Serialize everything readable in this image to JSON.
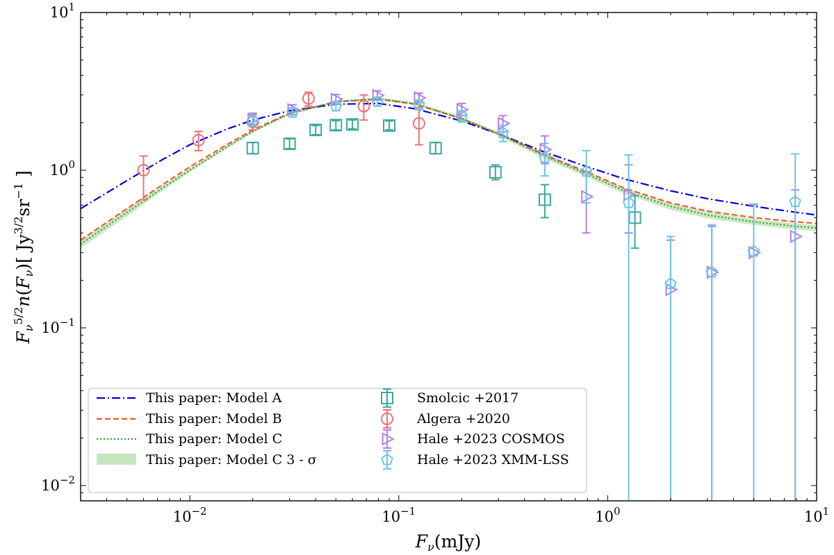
{
  "chart_data": {
    "type": "scatter",
    "title": "",
    "xlabel": "F_ν(mJy)",
    "ylabel": "F_ν^{5/2} n(F_ν) [ Jy^{3/2} sr^{-1} ]",
    "xscale": "log",
    "yscale": "log",
    "xlim": [
      0.003,
      10
    ],
    "ylim": [
      0.008,
      10
    ],
    "grid": false,
    "legend_position": "lower-left",
    "x_ticks": [
      {
        "value": 0.01,
        "base": "10",
        "exp": "−2"
      },
      {
        "value": 0.1,
        "base": "10",
        "exp": "−1"
      },
      {
        "value": 1,
        "base": "10",
        "exp": "0"
      },
      {
        "value": 10,
        "base": "10",
        "exp": "1"
      }
    ],
    "y_ticks": [
      {
        "value": 0.01,
        "base": "10",
        "exp": "−2"
      },
      {
        "value": 0.1,
        "base": "10",
        "exp": "−1"
      },
      {
        "value": 1,
        "base": "10",
        "exp": "0"
      },
      {
        "value": 10,
        "base": "10",
        "exp": "1"
      }
    ],
    "models": [
      {
        "name": "This paper: Model A",
        "color": "#0000dd",
        "dash": "dashdot",
        "x": [
          0.003,
          0.005,
          0.0075,
          0.01,
          0.015,
          0.02,
          0.03,
          0.05,
          0.08,
          0.12,
          0.2,
          0.3,
          0.5,
          0.8,
          1.2,
          2,
          3,
          5,
          8,
          10
        ],
        "y": [
          0.57,
          0.86,
          1.18,
          1.45,
          1.82,
          2.08,
          2.38,
          2.62,
          2.65,
          2.45,
          2.05,
          1.7,
          1.3,
          1.05,
          0.88,
          0.74,
          0.66,
          0.59,
          0.54,
          0.52
        ]
      },
      {
        "name": "This paper: Model B",
        "color": "#f05a28",
        "dash": "dashed",
        "x": [
          0.003,
          0.005,
          0.0075,
          0.01,
          0.015,
          0.02,
          0.03,
          0.05,
          0.08,
          0.12,
          0.2,
          0.3,
          0.5,
          0.8,
          1.2,
          2,
          3,
          5,
          8,
          10
        ],
        "y": [
          0.36,
          0.57,
          0.82,
          1.05,
          1.45,
          1.8,
          2.3,
          2.72,
          2.82,
          2.62,
          2.12,
          1.7,
          1.25,
          0.97,
          0.77,
          0.62,
          0.55,
          0.5,
          0.47,
          0.46
        ]
      },
      {
        "name": "This paper: Model C",
        "color": "#2ca02c",
        "dash": "dotted",
        "x": [
          0.003,
          0.005,
          0.0075,
          0.01,
          0.015,
          0.02,
          0.03,
          0.05,
          0.08,
          0.12,
          0.2,
          0.3,
          0.5,
          0.8,
          1.2,
          2,
          3,
          5,
          8,
          10
        ],
        "y": [
          0.34,
          0.54,
          0.78,
          1.0,
          1.4,
          1.76,
          2.28,
          2.72,
          2.84,
          2.64,
          2.13,
          1.7,
          1.23,
          0.94,
          0.74,
          0.59,
          0.52,
          0.47,
          0.44,
          0.43
        ]
      }
    ],
    "band": {
      "name": "This paper: Model C 3 - σ",
      "color": "#c7e6bf",
      "x": [
        0.003,
        0.005,
        0.0075,
        0.01,
        0.015,
        0.02,
        0.03,
        0.05,
        0.08,
        0.12,
        0.2,
        0.3,
        0.5,
        0.8,
        1.2,
        2,
        3,
        5,
        8,
        10
      ],
      "low": [
        0.32,
        0.51,
        0.75,
        0.97,
        1.37,
        1.73,
        2.25,
        2.68,
        2.79,
        2.59,
        2.08,
        1.65,
        1.18,
        0.9,
        0.71,
        0.56,
        0.495,
        0.45,
        0.42,
        0.41
      ],
      "high": [
        0.36,
        0.57,
        0.81,
        1.03,
        1.43,
        1.79,
        2.31,
        2.76,
        2.89,
        2.69,
        2.18,
        1.75,
        1.28,
        0.98,
        0.77,
        0.62,
        0.545,
        0.49,
        0.46,
        0.45
      ]
    },
    "datasets": [
      {
        "name": "Smolcic +2017",
        "color": "#3ba99c",
        "marker": "square",
        "points": [
          {
            "x": 0.02,
            "y": 1.38,
            "lo": 1.27,
            "hi": 1.5
          },
          {
            "x": 0.03,
            "y": 1.47,
            "lo": 1.37,
            "hi": 1.58
          },
          {
            "x": 0.04,
            "y": 1.8,
            "lo": 1.68,
            "hi": 1.92
          },
          {
            "x": 0.05,
            "y": 1.93,
            "lo": 1.8,
            "hi": 2.06
          },
          {
            "x": 0.06,
            "y": 1.95,
            "lo": 1.83,
            "hi": 2.08
          },
          {
            "x": 0.09,
            "y": 1.92,
            "lo": 1.8,
            "hi": 2.05
          },
          {
            "x": 0.15,
            "y": 1.38,
            "lo": 1.27,
            "hi": 1.5
          },
          {
            "x": 0.29,
            "y": 0.97,
            "lo": 0.87,
            "hi": 1.08
          },
          {
            "x": 0.5,
            "y": 0.65,
            "lo": 0.5,
            "hi": 0.81
          },
          {
            "x": 1.35,
            "y": 0.5,
            "lo": 0.32,
            "hi": 0.69
          }
        ]
      },
      {
        "name": "Algera +2020",
        "color": "#f07073",
        "marker": "circle",
        "points": [
          {
            "x": 0.006,
            "y": 1.0,
            "lo": 0.65,
            "hi": 1.23
          },
          {
            "x": 0.011,
            "y": 1.55,
            "lo": 1.33,
            "hi": 1.76
          },
          {
            "x": 0.02,
            "y": 2.02,
            "lo": 1.8,
            "hi": 2.25
          },
          {
            "x": 0.037,
            "y": 2.85,
            "lo": 2.55,
            "hi": 3.12
          },
          {
            "x": 0.068,
            "y": 2.55,
            "lo": 2.08,
            "hi": 3.0
          },
          {
            "x": 0.125,
            "y": 1.98,
            "lo": 1.45,
            "hi": 2.5
          }
        ]
      },
      {
        "name": "Hale +2023 COSMOS",
        "color": "#b77ee8",
        "marker": "triangle-right",
        "points": [
          {
            "x": 0.02,
            "y": 2.1,
            "lo": 1.95,
            "hi": 2.3
          },
          {
            "x": 0.031,
            "y": 2.42,
            "lo": 2.25,
            "hi": 2.6
          },
          {
            "x": 0.05,
            "y": 2.82,
            "lo": 2.62,
            "hi": 3.02
          },
          {
            "x": 0.079,
            "y": 2.98,
            "lo": 2.78,
            "hi": 3.18
          },
          {
            "x": 0.125,
            "y": 2.88,
            "lo": 2.68,
            "hi": 3.08
          },
          {
            "x": 0.2,
            "y": 2.42,
            "lo": 2.22,
            "hi": 2.65
          },
          {
            "x": 0.315,
            "y": 1.98,
            "lo": 1.75,
            "hi": 2.22
          },
          {
            "x": 0.5,
            "y": 1.35,
            "lo": 1.1,
            "hi": 1.65
          },
          {
            "x": 0.79,
            "y": 0.68,
            "lo": 0.4,
            "hi": 0.98
          },
          {
            "x": 1.26,
            "y": 0.7,
            "lo": 0.4,
            "hi": 1.08
          },
          {
            "x": 2.0,
            "y": 0.175,
            "lo": 0.0,
            "hi": 0.36
          },
          {
            "x": 3.15,
            "y": 0.225,
            "lo": 0.0,
            "hi": 0.44
          },
          {
            "x": 5.0,
            "y": 0.3,
            "lo": 0.0,
            "hi": 0.6
          },
          {
            "x": 7.9,
            "y": 0.38,
            "lo": 0.0,
            "hi": 0.75
          }
        ]
      },
      {
        "name": "Hale +2023 XMM-LSS",
        "color": "#6cc4e6",
        "marker": "pentagon",
        "points": [
          {
            "x": 0.02,
            "y": 2.05,
            "lo": 1.9,
            "hi": 2.22
          },
          {
            "x": 0.031,
            "y": 2.32,
            "lo": 2.17,
            "hi": 2.48
          },
          {
            "x": 0.05,
            "y": 2.55,
            "lo": 2.38,
            "hi": 2.72
          },
          {
            "x": 0.079,
            "y": 2.72,
            "lo": 2.55,
            "hi": 2.9
          },
          {
            "x": 0.125,
            "y": 2.6,
            "lo": 2.42,
            "hi": 2.78
          },
          {
            "x": 0.2,
            "y": 2.2,
            "lo": 2.02,
            "hi": 2.38
          },
          {
            "x": 0.315,
            "y": 1.72,
            "lo": 1.52,
            "hi": 1.92
          },
          {
            "x": 0.5,
            "y": 1.2,
            "lo": 0.92,
            "hi": 1.48
          },
          {
            "x": 0.79,
            "y": 0.98,
            "lo": 0.62,
            "hi": 1.33
          },
          {
            "x": 1.26,
            "y": 0.62,
            "lo": 0.0,
            "hi": 1.25
          },
          {
            "x": 2.0,
            "y": 0.19,
            "lo": 0.0,
            "hi": 0.38
          },
          {
            "x": 3.15,
            "y": 0.225,
            "lo": 0.0,
            "hi": 0.45
          },
          {
            "x": 5.0,
            "y": 0.305,
            "lo": 0.0,
            "hi": 0.61
          },
          {
            "x": 7.9,
            "y": 0.63,
            "lo": 0.0,
            "hi": 1.27
          }
        ]
      }
    ]
  }
}
